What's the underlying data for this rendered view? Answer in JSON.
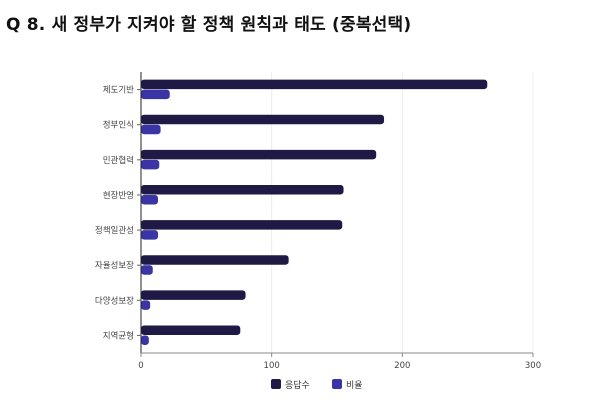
{
  "title": "Q 8. 새 정부가 지켜야 할 정책 원칙과 태도 (중복선택)",
  "colors": {
    "count": "#1e1a45",
    "ratio": "#3b34a4"
  },
  "chart_data": {
    "type": "bar",
    "orientation": "horizontal",
    "categories": [
      "제도기반",
      "정부인식",
      "민관협력",
      "현장반영",
      "정책일관성",
      "자율성보장",
      "다양성보장",
      "지역균형"
    ],
    "series": [
      {
        "name": "응답수",
        "values": [
          265,
          186,
          180,
          155,
          154,
          113,
          80,
          76
        ]
      },
      {
        "name": "비율",
        "values": [
          22,
          15,
          14,
          13,
          13,
          9,
          7,
          6
        ]
      }
    ],
    "xlim": [
      0,
      300
    ],
    "xticks": [
      "0",
      "100",
      "200",
      "300"
    ],
    "grid": "vertical",
    "legend": "bottom"
  }
}
